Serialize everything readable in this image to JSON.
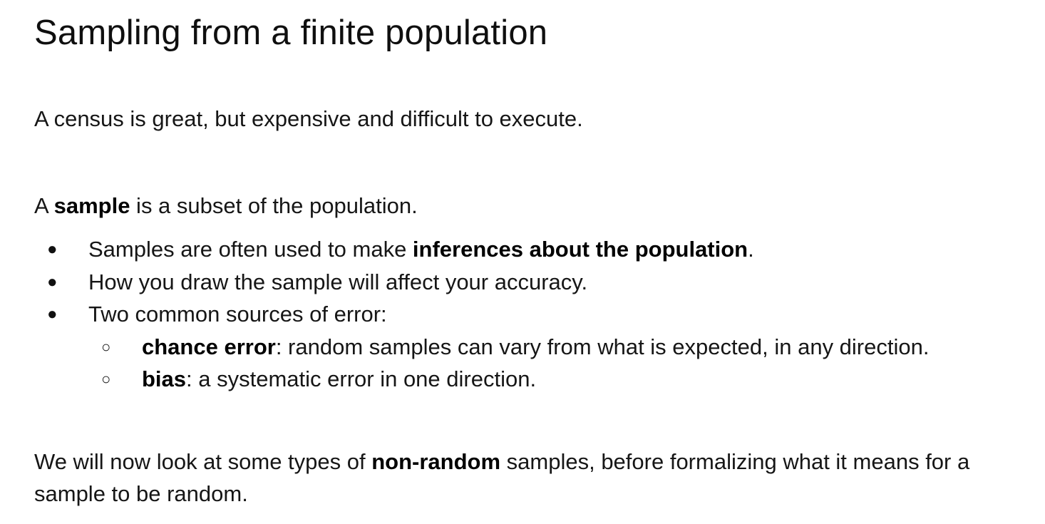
{
  "title": "Sampling from a finite population",
  "intro": "A census is great, but expensive and difficult to execute.",
  "sample_def": {
    "prefix": "A ",
    "term": "sample",
    "suffix": " is a subset of the population."
  },
  "bullets": {
    "marker_level1": "●",
    "marker_level2": "○",
    "item1": {
      "text": "Samples are often used to make ",
      "bold": "inferences about the population",
      "end": "."
    },
    "item2": {
      "text": "How you draw the sample will affect your accuracy."
    },
    "item3": {
      "text": "Two common sources of error:"
    },
    "sub1": {
      "term": "chance error",
      "text": ": random samples can vary from what is expected, in any direction."
    },
    "sub2": {
      "term": "bias",
      "text": ": a systematic error in one direction."
    }
  },
  "closing": {
    "prefix": "We will now look at some types of ",
    "term": "non-random",
    "suffix": " samples, before formalizing what it means for a sample to be random."
  }
}
